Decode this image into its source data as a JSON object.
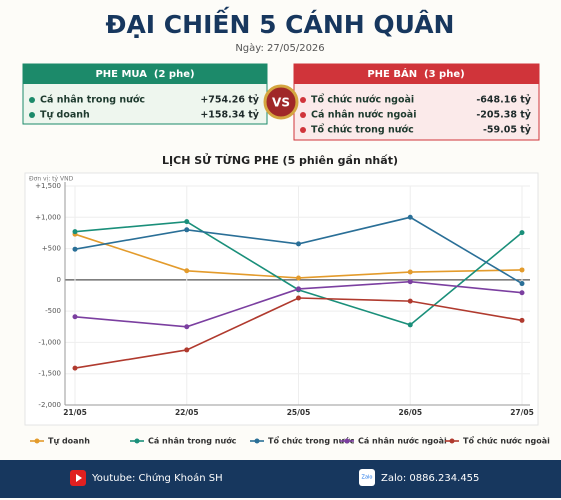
{
  "header": {
    "title": "ĐẠI CHIẾN 5 CÁNH QUÂN",
    "date": "Ngày: 27/05/2026"
  },
  "panels": {
    "buy": {
      "title": "PHE MUA  (2 phe)",
      "rows": [
        [
          "Cá nhân trong nước",
          "+754.26 tỷ"
        ],
        [
          "Tự doanh",
          "+158.34 tỷ"
        ]
      ]
    },
    "vs": "VS",
    "sell": {
      "title": "PHE BÁN  (3 phe)",
      "rows": [
        [
          "Tổ chức nước ngoài",
          "-648.16 tỷ"
        ],
        [
          "Cá nhân nước ngoài",
          "-205.38 tỷ"
        ],
        [
          "Tổ chức trong nước",
          "-59.05 tỷ"
        ]
      ]
    }
  },
  "chart_data": {
    "type": "line",
    "title": "LỊCH SỬ TỪNG PHE (5 phiên gần nhất)",
    "unit": "Đơn vị: tỷ VND",
    "categories": [
      "21/05",
      "22/05",
      "25/05",
      "26/05",
      "27/05"
    ],
    "series": [
      {
        "name": "Tự doanh",
        "color": "#e39b2c",
        "values": [
          730,
          145,
          30,
          125,
          158.34
        ]
      },
      {
        "name": "Cá nhân trong nước",
        "color": "#1a8f7a",
        "values": [
          770,
          930,
          -160,
          -720,
          754.26
        ]
      },
      {
        "name": "Tổ chức trong nước",
        "color": "#2a6f97",
        "values": [
          490,
          800,
          575,
          1000,
          -59.05
        ]
      },
      {
        "name": "Cá nhân nước ngoài",
        "color": "#7b3fa0",
        "values": [
          -590,
          -750,
          -145,
          -30,
          -205.38
        ]
      },
      {
        "name": "Tổ chức nước ngoài",
        "color": "#b03a2e",
        "values": [
          -1410,
          -1120,
          -290,
          -340,
          -648.16
        ]
      }
    ],
    "ylim": [
      -2000,
      1500
    ],
    "yticks": [
      {
        "value": 1500,
        "label": "+1,500"
      },
      {
        "value": 1000,
        "label": "+1,000"
      },
      {
        "value": 500,
        "label": "+500"
      },
      0,
      {
        "value": -500,
        "label": "-500"
      },
      {
        "value": -1000,
        "label": "-1,000"
      },
      {
        "value": -1500,
        "label": "-1,500"
      },
      {
        "value": -2000,
        "label": "-2,000"
      }
    ],
    "grid": true
  },
  "footer": {
    "youtube": "Youtube: Chứng Khoán SH",
    "zalo_icon": "Zalo",
    "zalo": "Zalo: 0886.234.455"
  }
}
